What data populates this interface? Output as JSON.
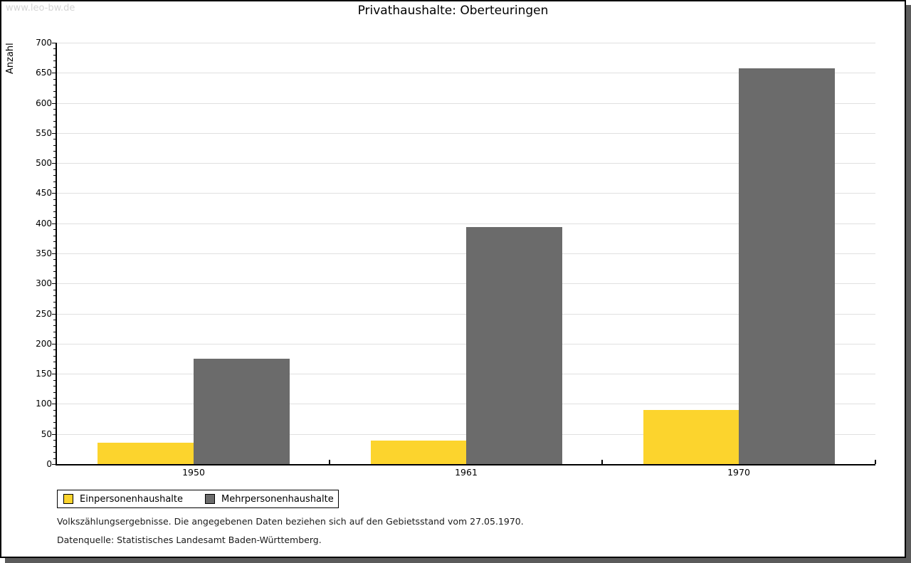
{
  "watermark": "www.leo-bw.de",
  "chart_data": {
    "type": "bar",
    "title": "Privathaushalte: Oberteuringen",
    "ylabel": "Anzahl",
    "xlabel": "",
    "categories": [
      "1950",
      "1961",
      "1970"
    ],
    "series": [
      {
        "name": "Einpersonenhaushalte",
        "color": "#FCD42D",
        "values": [
          35,
          39,
          90
        ]
      },
      {
        "name": "Mehrpersonenhaushalte",
        "color": "#6B6B6B",
        "values": [
          175,
          394,
          657
        ]
      }
    ],
    "axis": {
      "ymin": 0,
      "ymax": 700,
      "major_step": 50,
      "minor_step": 10
    },
    "grid": true,
    "legend_position": "bottom-left"
  },
  "footnotes": [
    "Volkszählungsergebnisse. Die angegebenen Daten beziehen sich auf den Gebietsstand vom 27.05.1970.",
    "Datenquelle: Statistisches Landesamt Baden-Württemberg."
  ],
  "colors": {
    "grid": "#E0E0E0",
    "axis": "#000000",
    "watermark_text": "#D4D4D4",
    "frame_shadow": "#5B5B5B",
    "frame_border": "#000000",
    "background": "#FFFFFF"
  }
}
